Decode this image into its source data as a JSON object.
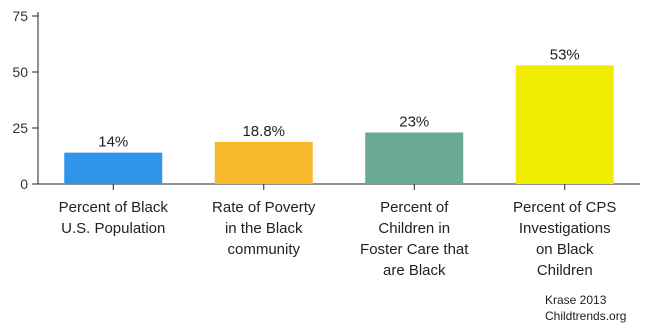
{
  "chart_data": {
    "type": "bar",
    "categories": [
      [
        "Percent of Black",
        "U.S. Population"
      ],
      [
        "Rate of Poverty",
        "in the Black",
        "community"
      ],
      [
        "Percent of",
        "Children in",
        "Foster Care that",
        "are Black"
      ],
      [
        "Percent of CPS",
        "Investigations",
        "on Black",
        "Children"
      ]
    ],
    "values": [
      14,
      18.8,
      23,
      53
    ],
    "data_labels": [
      "14%",
      "18.8%",
      "23%",
      "53%"
    ],
    "colors": [
      "#2f95ea",
      "#f6b92b",
      "#6aa995",
      "#f2ec00"
    ],
    "yticks": [
      0,
      25,
      50,
      75
    ],
    "ylim": [
      0,
      75
    ],
    "grid": false
  },
  "source": {
    "line1": "Krase 2013",
    "line2": "Childtrends.org"
  }
}
